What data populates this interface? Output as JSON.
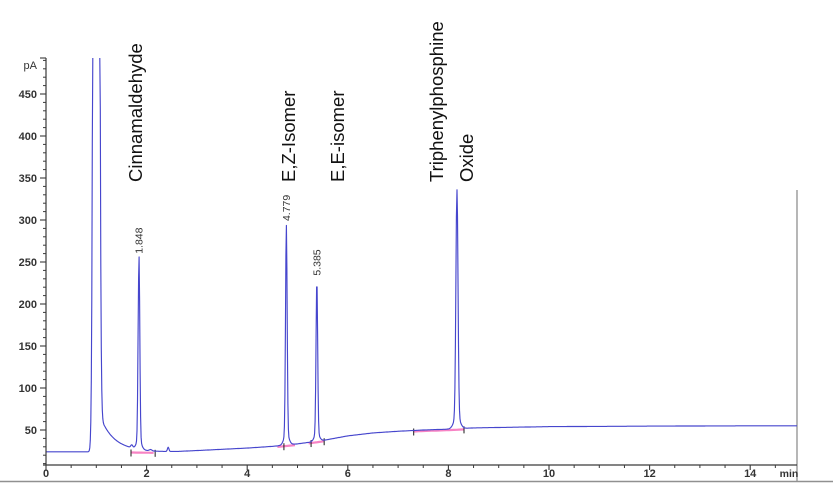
{
  "figure": {
    "kind": "gc-chromatogram",
    "background": "#ffffff"
  },
  "chart_data": {
    "type": "line",
    "title": "",
    "xlabel": "min",
    "ylabel": "pA",
    "x_axis": {
      "unit_label": "min",
      "min": 0,
      "max": 15,
      "major_ticks": [
        0,
        2,
        4,
        6,
        8,
        10,
        12,
        14
      ],
      "minor_tick_step": 0.5
    },
    "y_axis": {
      "unit_label": "pA",
      "major_ticks": [
        50,
        100,
        150,
        200,
        250,
        300,
        350,
        400,
        450
      ],
      "minor_tick_step": 10,
      "minor_min": 10,
      "minor_max": 490,
      "top_value": 500
    },
    "baseline_pA": [
      [
        0,
        24
      ],
      [
        0.88,
        24
      ],
      [
        1.1,
        24
      ],
      [
        1.6,
        24.5
      ],
      [
        2.2,
        24
      ],
      [
        2.6,
        24.3
      ],
      [
        3.0,
        25.5
      ],
      [
        3.5,
        27
      ],
      [
        4.0,
        28.5
      ],
      [
        4.5,
        30.5
      ],
      [
        5.0,
        33.5
      ],
      [
        5.5,
        37.5
      ],
      [
        6.0,
        43
      ],
      [
        6.5,
        46.5
      ],
      [
        7.0,
        48.5
      ],
      [
        7.5,
        50
      ],
      [
        8.0,
        51
      ],
      [
        8.5,
        52.5
      ],
      [
        9.0,
        53
      ],
      [
        9.5,
        53.5
      ],
      [
        10.0,
        54
      ],
      [
        11,
        54.3
      ],
      [
        12,
        54.6
      ],
      [
        13,
        54.8
      ],
      [
        14,
        55
      ],
      [
        15,
        55
      ]
    ],
    "solvent_peak": {
      "rt": 1.0,
      "clipped": true,
      "amp_pA": 5000,
      "sigma_min": 0.035,
      "tail_amp_pA": 42,
      "tail_tau_min": 0.28,
      "tail_start_min": 1.076
    },
    "peaks": [
      {
        "rt": 1.848,
        "apex_pA": 255,
        "sigma_min": 0.016,
        "rt_label": "1.848",
        "compound": "Cinnamaldehyde"
      },
      {
        "rt": 4.779,
        "apex_pA": 294,
        "sigma_min": 0.016,
        "rt_label": "4.779",
        "compound": "E,Z-Isomer"
      },
      {
        "rt": 5.385,
        "apex_pA": 229,
        "sigma_min": 0.016,
        "rt_label": "5.385",
        "compound": "E,E-isomer"
      },
      {
        "rt": 8.17,
        "apex_pA": 336,
        "sigma_min": 0.02,
        "rt_label": "",
        "compound": "Triphenylphosphine Oxide"
      }
    ],
    "minor_bumps": [
      {
        "rt": 1.705,
        "height_pA": 3.5,
        "sigma_min": 0.02
      },
      {
        "rt": 2.08,
        "height_pA": 1.5,
        "sigma_min": 0.025
      },
      {
        "rt": 2.43,
        "height_pA": 5,
        "sigma_min": 0.015
      }
    ],
    "integration": {
      "segments_min": [
        [
          1.69,
          2.17
        ],
        [
          4.6,
          4.97
        ],
        [
          5.22,
          5.55
        ],
        [
          7.31,
          8.31
        ]
      ],
      "tick_times_min": [
        1.69,
        2.17,
        4.73,
        5.27,
        5.53,
        7.31,
        8.31
      ]
    },
    "annotations": [
      {
        "text": "Cinnamaldehyde",
        "t_min": 1.79
      },
      {
        "text": "E,Z-Isomer",
        "t_min": 4.83
      },
      {
        "text": "E,E-isomer",
        "t_min": 5.81
      },
      {
        "text": "Triphenylphosphine",
        "t_min": 7.77
      },
      {
        "text": "Oxide",
        "t_min": 8.37
      }
    ],
    "legend": null,
    "grid": false,
    "colors": {
      "trace": "#4646cd",
      "integration_baseline": "#f783c4",
      "integration_tick": "#1a1a1a",
      "axis": "#3a3a3a",
      "tick_label": "#333333",
      "annotation_text": "#121212",
      "rt_label_text": "#333333",
      "page_border": "#909090"
    }
  }
}
